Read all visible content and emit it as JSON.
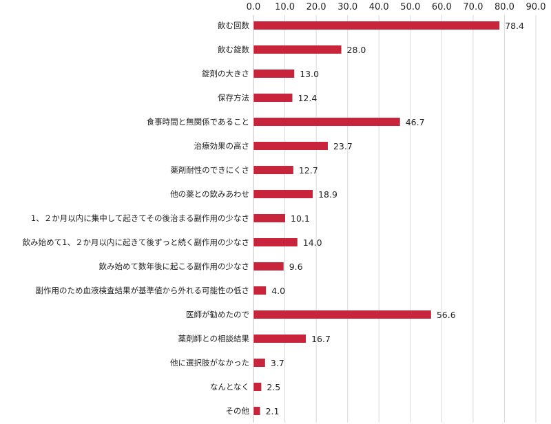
{
  "chart_data": {
    "type": "bar",
    "orientation": "horizontal",
    "title": "",
    "xlabel": "",
    "ylabel": "",
    "xlim": [
      0,
      90
    ],
    "ticks": [
      0,
      10,
      20,
      30,
      40,
      50,
      60,
      70,
      80,
      90
    ],
    "tick_labels": [
      "0.0",
      "10.0",
      "20.0",
      "30.0",
      "40.0",
      "50.0",
      "60.0",
      "70.0",
      "80.0",
      "90.0"
    ],
    "axis_position": "top",
    "grid": true,
    "bar_color": "#c8243c",
    "categories": [
      "飲む回数",
      "飲む錠数",
      "錠剤の大きさ",
      "保存方法",
      "食事時間と無関係であること",
      "治療効果の高さ",
      "薬剤耐性のできにくさ",
      "他の薬との飲みあわせ",
      "1、２か月以内に集中して起きてその後治まる副作用の少なさ",
      "飲み始めて1、２か月以内に起きて後ずっと続く副作用の少なさ",
      "飲み始めて数年後に起こる副作用の少なさ",
      "副作用のため血液検査結果が基準値から外れる可能性の低さ",
      "医師が勧めたので",
      "薬剤師との相談結果",
      "他に選択肢がなかった",
      "なんとなく",
      "その他"
    ],
    "values": [
      78.4,
      28.0,
      13.0,
      12.4,
      46.7,
      23.7,
      12.7,
      18.9,
      10.1,
      14.0,
      9.6,
      4.0,
      56.6,
      16.7,
      3.7,
      2.5,
      2.1
    ],
    "value_labels": [
      "78.4",
      "28.0",
      "13.0",
      "12.4",
      "46.7",
      "23.7",
      "12.7",
      "18.9",
      "10.1",
      "14.0",
      "9.6",
      "4.0",
      "56.6",
      "16.7",
      "3.7",
      "2.5",
      "2.1"
    ]
  }
}
